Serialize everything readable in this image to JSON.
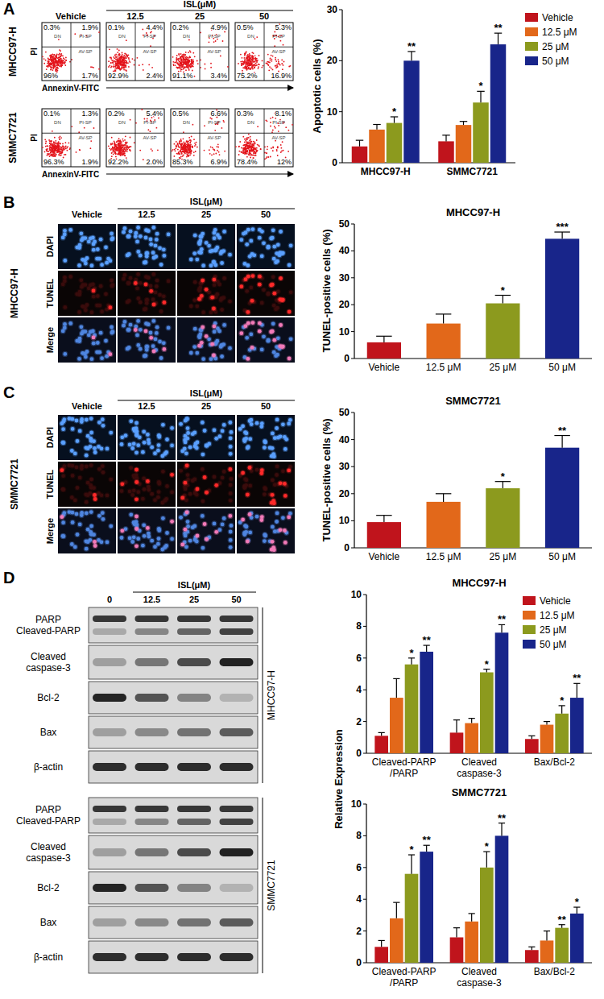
{
  "panel_labels": [
    "A",
    "B",
    "C",
    "D"
  ],
  "flow_cytometry": {
    "treatment_label": "ISL(μM)",
    "columns": [
      "Vehicle",
      12.5,
      25,
      50
    ],
    "x_label": "AnnexinV-FITC",
    "y_label": "PI",
    "quadrant_names": {
      "upper_left": "DN",
      "upper_right": "PI-SP",
      "lower_right": "AV-SP"
    },
    "rows": [
      {
        "cell_line": "MHCC97-H",
        "quadrants": [
          {
            "upper_left": {
              "value": 0.3,
              "label": "0.3%"
            },
            "upper_right": {
              "value": 1.9,
              "label": "1.9%"
            },
            "lower_left": {
              "value": 96,
              "label": "96%"
            },
            "lower_right": {
              "value": 1.7,
              "label": "1.7%"
            }
          },
          {
            "upper_left": {
              "value": 0.1,
              "label": "0.1%"
            },
            "upper_right": {
              "value": 4.4,
              "label": "4.4%"
            },
            "lower_left": {
              "value": 92.9,
              "label": "92.9%"
            },
            "lower_right": {
              "value": 2.4,
              "label": "2.4%"
            }
          },
          {
            "upper_left": {
              "value": 0.2,
              "label": "0.2%"
            },
            "upper_right": {
              "value": 4.9,
              "label": "4.9%"
            },
            "lower_left": {
              "value": 91.1,
              "label": "91.1%"
            },
            "lower_right": {
              "value": 3.4,
              "label": "3.4%"
            }
          },
          {
            "upper_left": {
              "value": 0.5,
              "label": "0.5%"
            },
            "upper_right": {
              "value": 5.3,
              "label": "5.3%"
            },
            "lower_left": {
              "value": 75.2,
              "label": "75.2%"
            },
            "lower_right": {
              "value": 16.9,
              "label": "16.9%"
            }
          }
        ]
      },
      {
        "cell_line": "SMMC7721",
        "quadrants": [
          {
            "upper_left": {
              "value": 0.1,
              "label": "0.1%"
            },
            "upper_right": {
              "value": 1.3,
              "label": "1.3%"
            },
            "lower_left": {
              "value": 96.3,
              "label": "96.3%"
            },
            "lower_right": {
              "value": 1.9,
              "label": "1.9%"
            }
          },
          {
            "upper_left": {
              "value": 0.2,
              "label": "0.2%"
            },
            "upper_right": {
              "value": 5.4,
              "label": "5.4%"
            },
            "lower_left": {
              "value": 92.2,
              "label": "92.2%"
            },
            "lower_right": {
              "value": 2.0,
              "label": "2.0%"
            }
          },
          {
            "upper_left": {
              "value": 0.5,
              "label": "0.5%"
            },
            "upper_right": {
              "value": 6.6,
              "label": "6.6%"
            },
            "lower_left": {
              "value": 85.3,
              "label": "85.3%"
            },
            "lower_right": {
              "value": 6.9,
              "label": "6.9%"
            }
          },
          {
            "upper_left": {
              "value": 0.3,
              "label": "0.3%"
            },
            "upper_right": {
              "value": 8.1,
              "label": "8.1%"
            },
            "lower_left": {
              "value": 78.4,
              "label": "78.4%"
            },
            "lower_right": {
              "value": 12,
              "label": "12%"
            }
          }
        ]
      }
    ]
  },
  "tunel_images": {
    "treatment_label": "ISL(μM)",
    "columns": [
      "Vehicle",
      12.5,
      25,
      50
    ],
    "stains": [
      "DAPI",
      "TUNEL",
      "Merge"
    ],
    "cell_lines": [
      "MHCC97-H",
      "SMMC7721"
    ]
  },
  "western_blot": {
    "treatment_label": "ISL(μM)",
    "lanes": [
      0,
      12.5,
      25,
      50
    ],
    "proteins": [
      "PARP\nCleaved-PARP",
      "Cleaved\ncaspase-3",
      "Bcl-2",
      "Bax",
      "β-actin"
    ],
    "cell_lines": [
      "MHCC97-H",
      "SMMC7721"
    ]
  },
  "chart_data": [
    {
      "type": "bar",
      "y_label": "Apoptotic cells (%)",
      "categories": [
        "MHCC97-H",
        "SMMC7721"
      ],
      "series": [
        {
          "name": "Vehicle",
          "color": "#c0141c",
          "values": [
            3.2,
            4.2
          ],
          "errors": [
            1.2,
            1.2
          ],
          "significance": [
            null,
            null
          ]
        },
        {
          "name": "12.5 μM",
          "color": "#e2681a",
          "values": [
            6.5,
            7.4
          ],
          "errors": [
            1.0,
            0.7
          ],
          "significance": [
            null,
            null
          ]
        },
        {
          "name": "25 μM",
          "color": "#8c9a1e",
          "values": [
            7.8,
            11.8
          ],
          "errors": [
            1.2,
            2.2
          ],
          "significance": [
            "*",
            "*"
          ]
        },
        {
          "name": "50 μM",
          "color": "#18258a",
          "values": [
            20,
            23.2
          ],
          "errors": [
            1.8,
            2.2
          ],
          "significance": [
            "**",
            "**"
          ]
        }
      ],
      "ylim": [
        0,
        30
      ],
      "yticks": [
        0,
        10,
        20,
        30
      ],
      "legend": "right"
    },
    {
      "type": "bar",
      "title": "MHCC97-H",
      "y_label": "TUNEL-positive cells (%)",
      "categories": [
        "Vehicle",
        "12.5 μM",
        "25 μM",
        "50 μM"
      ],
      "values": [
        6,
        13,
        20.5,
        44.5
      ],
      "errors": [
        2.3,
        3.5,
        3,
        2.5
      ],
      "significance": [
        null,
        null,
        "*",
        "***"
      ],
      "colors": [
        "#c0141c",
        "#e2681a",
        "#8c9a1e",
        "#18258a"
      ],
      "ylim": [
        0,
        50
      ],
      "yticks": [
        0,
        10,
        20,
        30,
        40,
        50
      ]
    },
    {
      "type": "bar",
      "title": "SMMC7721",
      "y_label": "TUNEL-positive cells (%)",
      "categories": [
        "Vehicle",
        "12.5 μM",
        "25 μM",
        "50 μM"
      ],
      "values": [
        9.5,
        17,
        22,
        37
      ],
      "errors": [
        2.5,
        3,
        2.5,
        4.5
      ],
      "significance": [
        null,
        null,
        "*",
        "**"
      ],
      "colors": [
        "#c0141c",
        "#e2681a",
        "#8c9a1e",
        "#18258a"
      ],
      "ylim": [
        0,
        50
      ],
      "yticks": [
        0,
        10,
        20,
        30,
        40,
        50
      ]
    },
    {
      "type": "bar",
      "title": "MHCC97-H",
      "y_label": "Relative Expression",
      "categories": [
        "Cleaved-PARP\n/PARP",
        "Cleaved\ncaspase-3",
        "Bax/Bcl-2"
      ],
      "series": [
        {
          "name": "Vehicle",
          "color": "#c0141c",
          "values": [
            1.1,
            1.3,
            0.9
          ],
          "errors": [
            0.2,
            0.8,
            0.2
          ],
          "significance": [
            null,
            null,
            null
          ]
        },
        {
          "name": "12.5 μM",
          "color": "#e2681a",
          "values": [
            3.5,
            1.9,
            1.8
          ],
          "errors": [
            1.2,
            0.3,
            0.2
          ],
          "significance": [
            null,
            null,
            null
          ]
        },
        {
          "name": "25 μM",
          "color": "#8c9a1e",
          "values": [
            5.6,
            5.1,
            2.5
          ],
          "errors": [
            0.4,
            0.2,
            0.5
          ],
          "significance": [
            "*",
            "*",
            "*"
          ]
        },
        {
          "name": "50 μM",
          "color": "#18258a",
          "values": [
            6.4,
            7.6,
            3.5
          ],
          "errors": [
            0.4,
            0.5,
            0.9
          ],
          "significance": [
            "**",
            "**",
            "**"
          ]
        }
      ],
      "ylim": [
        0,
        10
      ],
      "yticks": [
        0,
        2,
        4,
        6,
        8,
        10
      ],
      "legend": "top-right"
    },
    {
      "type": "bar",
      "title": "SMMC7721",
      "categories": [
        "Cleaved-PARP\n/PARP",
        "Cleaved\ncaspase-3",
        "Bax/Bcl-2"
      ],
      "series": [
        {
          "name": "Vehicle",
          "color": "#c0141c",
          "values": [
            1.0,
            1.6,
            0.8
          ],
          "errors": [
            0.4,
            0.6,
            0.2
          ],
          "significance": [
            null,
            null,
            null
          ]
        },
        {
          "name": "12.5 μM",
          "color": "#e2681a",
          "values": [
            2.8,
            2.6,
            1.4
          ],
          "errors": [
            1.0,
            0.5,
            0.6
          ],
          "significance": [
            null,
            null,
            null
          ]
        },
        {
          "name": "25 μM",
          "color": "#8c9a1e",
          "values": [
            5.6,
            6.0,
            2.2
          ],
          "errors": [
            1.2,
            1.0,
            0.2
          ],
          "significance": [
            "*",
            "*",
            "**"
          ]
        },
        {
          "name": "50 μM",
          "color": "#18258a",
          "values": [
            7.0,
            8.0,
            3.1
          ],
          "errors": [
            0.4,
            0.8,
            0.4
          ],
          "significance": [
            "**",
            "**",
            "*"
          ]
        }
      ],
      "ylim": [
        0,
        10
      ],
      "yticks": [
        0,
        2,
        4,
        6,
        8,
        10
      ]
    }
  ]
}
